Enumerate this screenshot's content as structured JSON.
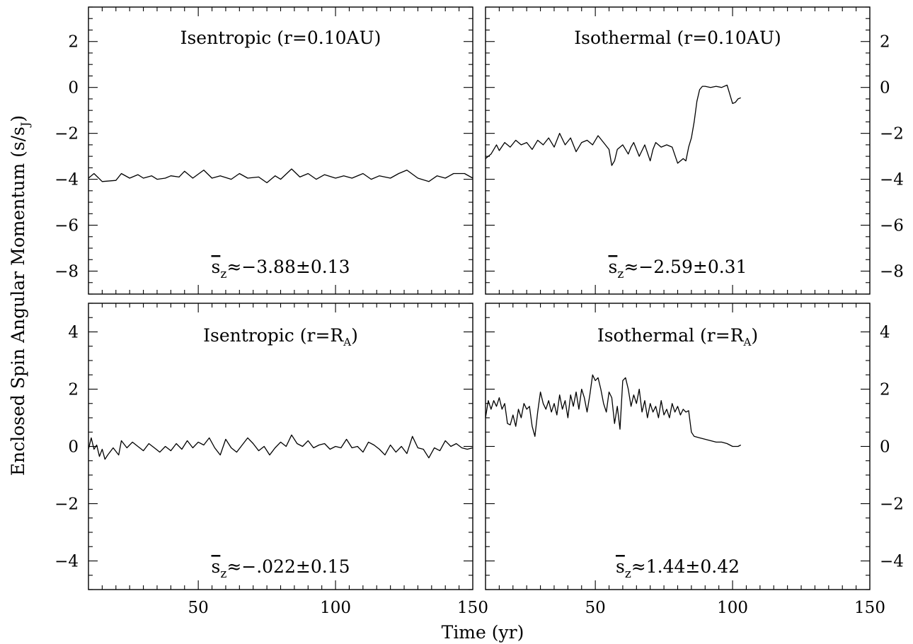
{
  "figure": {
    "xlabel": "Time (yr)",
    "ylabel": "Enclosed Spin Angular Momentum (s/s",
    "ylabel_sub": "J",
    "ylabel_close": ")"
  },
  "chart_data": [
    {
      "type": "line",
      "title": "Isentropic (r=0.10AU)",
      "annotation": {
        "text": "≈−3.88±0.13",
        "symbol": "s",
        "sub": "z"
      },
      "xlim": [
        10,
        150
      ],
      "ylim": [
        -9,
        3.5
      ],
      "x_ticks": [
        50,
        100,
        150
      ],
      "x_tick_labels": [
        "",
        "",
        ""
      ],
      "y_ticks": [
        -8,
        -6,
        -4,
        -2,
        0,
        2
      ],
      "y_tick_labels": [
        "−8",
        "−6",
        "−4",
        "−2",
        "0",
        "2"
      ],
      "y_labels_side": "left",
      "series": [
        {
          "x": [
            10,
            12,
            15,
            20,
            22,
            25,
            28,
            30,
            33,
            35,
            38,
            40,
            43,
            45,
            48,
            52,
            55,
            58,
            62,
            65,
            68,
            72,
            75,
            78,
            80,
            84,
            87,
            90,
            93,
            96,
            100,
            103,
            106,
            110,
            113,
            116,
            120,
            123,
            126,
            130,
            134,
            137,
            140,
            143,
            147,
            150
          ],
          "y": [
            -3.95,
            -3.75,
            -4.1,
            -4.05,
            -3.75,
            -3.95,
            -3.8,
            -3.95,
            -3.85,
            -4.0,
            -3.95,
            -3.85,
            -3.9,
            -3.65,
            -3.95,
            -3.6,
            -3.95,
            -3.85,
            -4.0,
            -3.75,
            -3.95,
            -3.9,
            -4.15,
            -3.85,
            -4.0,
            -3.55,
            -3.9,
            -3.75,
            -4.0,
            -3.8,
            -3.95,
            -3.85,
            -3.95,
            -3.75,
            -4.0,
            -3.85,
            -3.95,
            -3.75,
            -3.6,
            -3.95,
            -4.1,
            -3.85,
            -3.95,
            -3.75,
            -3.75,
            -3.95
          ]
        }
      ]
    },
    {
      "type": "line",
      "title": "Isothermal (r=0.10AU)",
      "annotation": {
        "text": "≈−2.59±0.31",
        "symbol": "s",
        "sub": "z"
      },
      "xlim": [
        10,
        150
      ],
      "ylim": [
        -9,
        3.5
      ],
      "x_ticks": [
        50,
        100,
        150
      ],
      "x_tick_labels": [
        "",
        "",
        ""
      ],
      "y_ticks": [
        -8,
        -6,
        -4,
        -2,
        0,
        2
      ],
      "y_tick_labels": [
        "−8",
        "−6",
        "−4",
        "−2",
        "0",
        "2"
      ],
      "y_labels_side": "right",
      "series": [
        {
          "x": [
            10,
            12,
            14,
            15,
            17,
            19,
            21,
            23,
            25,
            27,
            29,
            31,
            33,
            35,
            37,
            39,
            41,
            43,
            45,
            47,
            49,
            51,
            53,
            55,
            56,
            57,
            58,
            60,
            62,
            63,
            64,
            66,
            68,
            70,
            71,
            72,
            74,
            76,
            78,
            80,
            82,
            83,
            84,
            85,
            86,
            87,
            88,
            89,
            90,
            92,
            94,
            96,
            98,
            99,
            100,
            101,
            102,
            103
          ],
          "y": [
            -3.1,
            -2.9,
            -2.5,
            -2.75,
            -2.4,
            -2.6,
            -2.3,
            -2.5,
            -2.4,
            -2.7,
            -2.3,
            -2.5,
            -2.2,
            -2.6,
            -2.0,
            -2.5,
            -2.2,
            -2.8,
            -2.4,
            -2.3,
            -2.5,
            -2.1,
            -2.4,
            -2.7,
            -3.4,
            -3.2,
            -2.7,
            -2.5,
            -2.9,
            -2.6,
            -2.4,
            -3.0,
            -2.5,
            -3.2,
            -2.7,
            -2.4,
            -2.6,
            -2.5,
            -2.6,
            -3.3,
            -3.1,
            -3.2,
            -2.6,
            -2.2,
            -1.5,
            -0.6,
            -0.1,
            0.05,
            0.05,
            0.0,
            0.05,
            0.0,
            0.1,
            -0.3,
            -0.7,
            -0.65,
            -0.5,
            -0.45
          ]
        }
      ]
    },
    {
      "type": "line",
      "title": "Isentropic (r=R",
      "title_sub": "A",
      "title_close": ")",
      "annotation": {
        "text": "≈−.022±0.15",
        "symbol": "s",
        "sub": "z"
      },
      "xlim": [
        10,
        150
      ],
      "ylim": [
        -5,
        5
      ],
      "x_ticks": [
        50,
        100,
        150
      ],
      "x_tick_labels": [
        "50",
        "100",
        "150"
      ],
      "y_ticks": [
        -4,
        -2,
        0,
        2,
        4
      ],
      "y_tick_labels": [
        "−4",
        "−2",
        "0",
        "2",
        "4"
      ],
      "y_labels_side": "left",
      "series": [
        {
          "x": [
            10,
            11,
            12,
            13,
            14,
            15,
            16,
            17,
            19,
            21,
            22,
            24,
            26,
            28,
            30,
            32,
            34,
            36,
            38,
            40,
            42,
            44,
            46,
            48,
            50,
            52,
            54,
            56,
            58,
            60,
            62,
            64,
            66,
            68,
            70,
            72,
            74,
            76,
            78,
            80,
            82,
            84,
            86,
            88,
            90,
            92,
            94,
            96,
            98,
            100,
            102,
            104,
            106,
            108,
            110,
            112,
            114,
            116,
            118,
            120,
            122,
            124,
            126,
            128,
            130,
            132,
            134,
            136,
            138,
            140,
            142,
            144,
            146,
            148,
            150
          ],
          "y": [
            -0.1,
            0.3,
            -0.1,
            0.05,
            -0.35,
            -0.1,
            -0.45,
            -0.3,
            -0.05,
            -0.3,
            0.2,
            -0.05,
            0.15,
            0.0,
            -0.15,
            0.1,
            -0.05,
            -0.2,
            0.0,
            -0.15,
            0.1,
            -0.1,
            0.2,
            -0.05,
            0.15,
            0.05,
            0.3,
            -0.05,
            -0.3,
            0.25,
            -0.05,
            -0.2,
            0.05,
            0.3,
            0.1,
            -0.15,
            0.0,
            -0.3,
            -0.05,
            0.15,
            0.0,
            0.4,
            0.1,
            0.0,
            0.2,
            -0.05,
            0.05,
            0.1,
            -0.1,
            0.0,
            -0.05,
            0.25,
            -0.05,
            0.0,
            -0.2,
            0.15,
            0.05,
            -0.1,
            -0.3,
            0.05,
            -0.2,
            0.0,
            -0.25,
            0.35,
            -0.05,
            -0.1,
            -0.4,
            -0.05,
            -0.15,
            0.2,
            0.0,
            0.1,
            -0.05,
            -0.1,
            -0.05
          ]
        }
      ]
    },
    {
      "type": "line",
      "title": "Isothermal (r=R",
      "title_sub": "A",
      "title_close": ")",
      "annotation": {
        "text": "≈1.44±0.42",
        "symbol": "s",
        "sub": "z"
      },
      "xlim": [
        10,
        150
      ],
      "ylim": [
        -5,
        5
      ],
      "x_ticks": [
        50,
        100,
        150
      ],
      "x_tick_labels": [
        "50",
        "100",
        "150"
      ],
      "y_ticks": [
        -4,
        -2,
        0,
        2,
        4
      ],
      "y_tick_labels": [
        "−4",
        "−2",
        "0",
        "2",
        "4"
      ],
      "y_labels_side": "right",
      "series": [
        {
          "x": [
            10,
            11,
            12,
            13,
            14,
            15,
            16,
            17,
            18,
            19,
            20,
            21,
            22,
            23,
            24,
            25,
            26,
            27,
            28,
            29,
            30,
            31,
            32,
            33,
            34,
            35,
            36,
            37,
            38,
            39,
            40,
            41,
            42,
            43,
            44,
            45,
            46,
            47,
            48,
            49,
            50,
            51,
            52,
            53,
            54,
            55,
            56,
            57,
            58,
            59,
            60,
            61,
            62,
            63,
            64,
            65,
            66,
            67,
            68,
            69,
            70,
            71,
            72,
            73,
            74,
            75,
            76,
            77,
            78,
            79,
            80,
            81,
            82,
            83,
            84,
            85,
            86,
            88,
            90,
            92,
            94,
            96,
            98,
            100,
            102,
            103
          ],
          "y": [
            1.0,
            1.6,
            1.3,
            1.6,
            1.4,
            1.7,
            1.3,
            1.5,
            0.8,
            0.75,
            1.1,
            0.7,
            1.3,
            1.0,
            1.5,
            1.3,
            1.4,
            0.7,
            0.35,
            1.2,
            1.9,
            1.5,
            1.3,
            1.6,
            1.2,
            1.5,
            1.1,
            1.8,
            1.3,
            1.6,
            1.0,
            1.8,
            1.4,
            1.9,
            1.3,
            2.0,
            1.7,
            1.2,
            1.8,
            2.5,
            2.3,
            2.4,
            2.0,
            1.5,
            1.2,
            1.9,
            1.7,
            0.8,
            1.4,
            0.6,
            2.3,
            2.4,
            2.0,
            1.4,
            1.8,
            1.5,
            2.0,
            1.2,
            1.6,
            1.0,
            1.5,
            1.2,
            1.4,
            1.0,
            1.6,
            1.1,
            1.3,
            1.0,
            1.5,
            1.2,
            1.4,
            1.1,
            1.3,
            1.2,
            1.25,
            0.5,
            0.35,
            0.3,
            0.25,
            0.2,
            0.15,
            0.15,
            0.1,
            0.0,
            0.0,
            0.05
          ]
        }
      ]
    }
  ]
}
